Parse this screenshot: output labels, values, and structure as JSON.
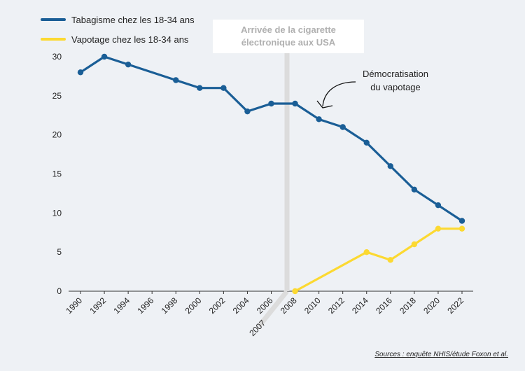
{
  "chart_data": {
    "type": "line",
    "ylim": [
      0,
      30
    ],
    "yticks": [
      0,
      5,
      10,
      15,
      20,
      25,
      30
    ],
    "xticks": [
      1990,
      1992,
      1994,
      1996,
      1998,
      2000,
      2002,
      2004,
      2006,
      2008,
      2010,
      2012,
      2014,
      2016,
      2018,
      2020,
      2022
    ],
    "xlim": [
      1990,
      2022
    ],
    "grid": false,
    "legend_position": "top-left",
    "series": [
      {
        "name": "Tabagisme chez les 18-34 ans",
        "color": "#1a5e96",
        "x": [
          1990,
          1992,
          1994,
          1998,
          2000,
          2002,
          2004,
          2006,
          2008,
          2010,
          2012,
          2014,
          2016,
          2018,
          2020,
          2022
        ],
        "y": [
          28,
          30,
          29,
          27,
          26,
          26,
          23,
          24,
          24,
          22,
          21,
          19,
          16,
          13,
          11,
          9
        ]
      },
      {
        "name": "Vapotage chez les 18-34 ans",
        "color": "#fcd931",
        "x": [
          2008,
          2014,
          2016,
          2018,
          2020,
          2022
        ],
        "y": [
          0,
          5,
          4,
          6,
          8,
          8
        ]
      }
    ],
    "event_marker": {
      "year_label": "2007",
      "label": "Arrivée de la cigarette électronique aux USA"
    },
    "annotation": "Démocratisation du vapotage"
  },
  "callout": {
    "line1": "Arrivée de la cigarette",
    "line2": "électronique aux USA"
  },
  "annotation": {
    "line1": "Démocratisation",
    "line2": "du vapotage"
  },
  "source": "Sources : enquête NHIS/étude Foxon et al."
}
